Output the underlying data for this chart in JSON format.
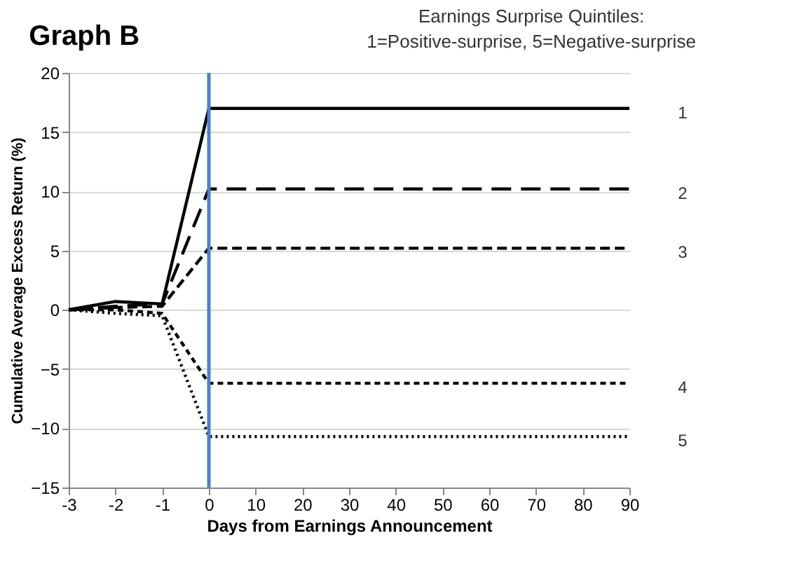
{
  "chart_data": {
    "type": "line",
    "title": "Graph B",
    "xlabel": "Days from Earnings Announcement",
    "ylabel": "Cumulative Average Excess Return (%)",
    "annotations": [
      "Earnings Surprise Quintiles:",
      "1=Positive-surprise,   5=Negative-surprise"
    ],
    "categories": [
      "-3",
      "-2",
      "-1",
      "0",
      "10",
      "20",
      "30",
      "40",
      "50",
      "60",
      "70",
      "80",
      "90"
    ],
    "series": [
      {
        "name": "1",
        "color": "#000000",
        "line_style": "solid",
        "values": [
          0,
          0.7,
          0.5,
          17,
          17,
          17,
          17,
          17,
          17,
          17,
          17,
          17,
          17
        ]
      },
      {
        "name": "2",
        "color": "#000000",
        "line_style": "dashed",
        "values": [
          0,
          0.3,
          0.5,
          10.2,
          10.2,
          10.2,
          10.2,
          10.2,
          10.2,
          10.2,
          10.2,
          10.2,
          10.2
        ]
      },
      {
        "name": "3",
        "color": "#000000",
        "line_style": "dashed",
        "values": [
          0,
          0.2,
          0.3,
          5.2,
          5.2,
          5.2,
          5.2,
          5.2,
          5.2,
          5.2,
          5.2,
          5.2,
          5.2
        ]
      },
      {
        "name": "4",
        "color": "#000000",
        "line_style": "dashed",
        "values": [
          0,
          0,
          -0.3,
          -6.2,
          -6.2,
          -6.2,
          -6.2,
          -6.2,
          -6.2,
          -6.2,
          -6.2,
          -6.2,
          -6.2
        ]
      },
      {
        "name": "5",
        "color": "#000000",
        "line_style": "dotted",
        "values": [
          0,
          -0.3,
          -0.5,
          -10.7,
          -10.7,
          -10.7,
          -10.7,
          -10.7,
          -10.7,
          -10.7,
          -10.7,
          -10.7,
          -10.7
        ]
      }
    ],
    "ylim": [
      -15,
      20
    ],
    "yticks": [
      -15,
      -10,
      -5,
      0,
      5,
      10,
      15,
      20
    ],
    "grid": "y",
    "marker": "none",
    "ref_lines": [
      {
        "axis": "x",
        "value": "0",
        "color": "#4f81bd"
      }
    ]
  }
}
